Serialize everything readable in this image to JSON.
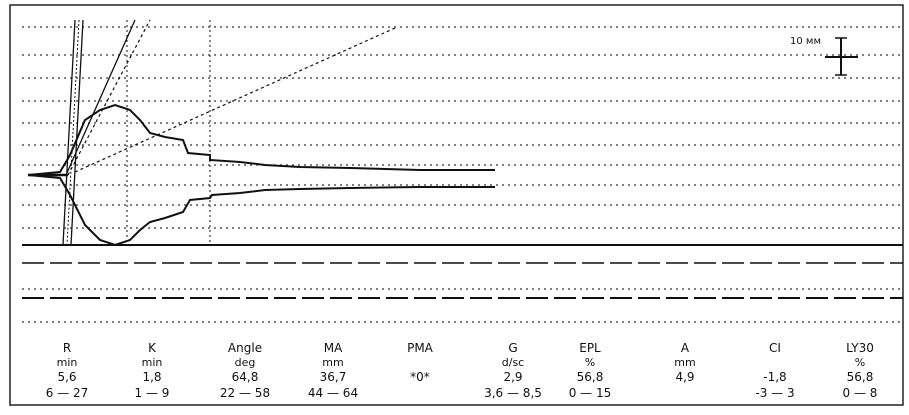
{
  "chart_data": {
    "type": "line",
    "title": "",
    "xlabel": "",
    "ylabel": "",
    "grid": true,
    "scale_marker": {
      "label": "10 мм"
    },
    "parameters": [
      {
        "name": "R",
        "unit": "min",
        "value": "5,6",
        "range": "6 — 27"
      },
      {
        "name": "K",
        "unit": "min",
        "value": "1,8",
        "range": "1 — 9"
      },
      {
        "name": "Angle",
        "unit": "deg",
        "value": "64,8",
        "range": "22 — 58"
      },
      {
        "name": "MA",
        "unit": "mm",
        "value": "36,7",
        "range": "44 — 64"
      },
      {
        "name": "PMA",
        "unit": "",
        "value": "*0*",
        "range": ""
      },
      {
        "name": "G",
        "unit": "d/sc",
        "value": "2,9",
        "range": "3,6 — 8,5"
      },
      {
        "name": "EPL",
        "unit": "%",
        "value": "56,8",
        "range": "0 — 15"
      },
      {
        "name": "A",
        "unit": "mm",
        "value": "4,9",
        "range": ""
      },
      {
        "name": "CI",
        "unit": "",
        "value": "-1,8",
        "range": "-3 — 3"
      },
      {
        "name": "LY30",
        "unit": "%",
        "value": "56,8",
        "range": "0 — 8"
      }
    ],
    "trace": {
      "upper": [
        [
          28,
          175
        ],
        [
          60,
          172
        ],
        [
          70,
          155
        ],
        [
          85,
          120
        ],
        [
          100,
          110
        ],
        [
          115,
          105
        ],
        [
          130,
          110
        ],
        [
          140,
          120
        ],
        [
          150,
          133
        ],
        [
          165,
          137
        ],
        [
          183,
          140
        ],
        [
          188,
          153
        ],
        [
          210,
          155
        ],
        [
          210,
          160
        ],
        [
          240,
          162
        ],
        [
          265,
          165
        ],
        [
          300,
          167
        ],
        [
          350,
          168
        ],
        [
          420,
          170
        ],
        [
          495,
          170
        ]
      ],
      "lower": [
        [
          28,
          175
        ],
        [
          60,
          178
        ],
        [
          70,
          195
        ],
        [
          85,
          225
        ],
        [
          100,
          240
        ],
        [
          115,
          245
        ],
        [
          130,
          240
        ],
        [
          140,
          230
        ],
        [
          150,
          222
        ],
        [
          165,
          218
        ],
        [
          183,
          212
        ],
        [
          190,
          200
        ],
        [
          210,
          198
        ],
        [
          212,
          195
        ],
        [
          240,
          193
        ],
        [
          265,
          190
        ],
        [
          300,
          189
        ],
        [
          350,
          188
        ],
        [
          420,
          187
        ],
        [
          495,
          187
        ]
      ]
    }
  }
}
